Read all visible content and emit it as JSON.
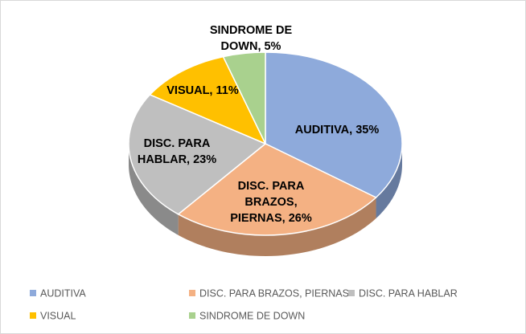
{
  "chart_data": {
    "type": "pie",
    "variant": "3d",
    "title": "",
    "categories": [
      "AUDITIVA",
      "DISC. PARA BRAZOS, PIERNAS",
      "DISC. PARA HABLAR",
      "VISUAL",
      "SINDROME DE DOWN"
    ],
    "values": [
      35,
      26,
      23,
      11,
      5
    ],
    "unit": "%",
    "colors": [
      "#8eaadb",
      "#f4b183",
      "#bfbfbf",
      "#ffc000",
      "#a9d18e"
    ],
    "data_labels": [
      [
        "AUDITIVA, 35%"
      ],
      [
        "DISC. PARA",
        "BRAZOS,",
        "PIERNAS, 26%"
      ],
      [
        "DISC. PARA",
        "HABLAR, 23%"
      ],
      [
        "VISUAL, 11%"
      ],
      [
        "SINDROME DE",
        "DOWN, 5%"
      ]
    ],
    "legend": {
      "position": "bottom",
      "rows": [
        [
          "AUDITIVA",
          "DISC. PARA BRAZOS, PIERNAS",
          "DISC. PARA HABLAR"
        ],
        [
          "VISUAL",
          "SINDROME DE DOWN"
        ]
      ]
    }
  }
}
